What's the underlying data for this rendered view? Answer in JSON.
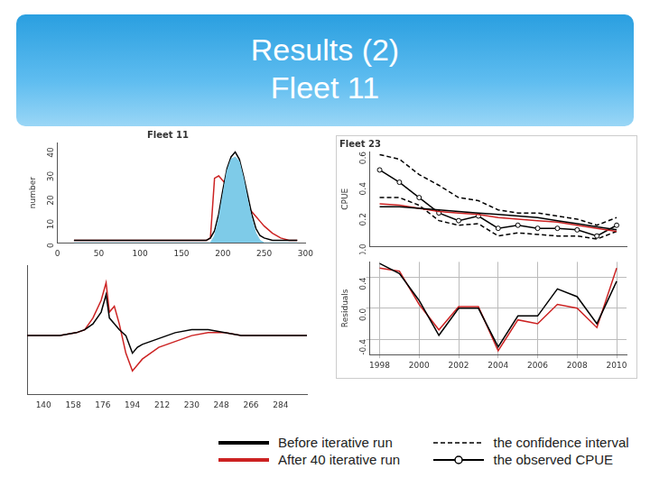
{
  "header": {
    "title": [
      "Results (2)",
      "Fleet 11"
    ]
  },
  "chart_data": [
    {
      "type": "line",
      "title": "Fleet 11",
      "y_label": "number",
      "x": [
        20,
        50,
        100,
        150,
        170,
        180,
        185,
        190,
        195,
        200,
        205,
        210,
        215,
        220,
        225,
        230,
        235,
        240,
        245,
        250,
        260,
        270,
        280,
        290
      ],
      "series": [
        {
          "type": "area",
          "color": "#7ecbe8",
          "values": [
            0,
            0,
            0,
            0,
            0,
            0,
            0,
            3,
            10,
            20,
            30,
            35,
            36,
            34,
            27,
            18,
            10,
            4,
            1,
            0,
            0,
            0,
            0,
            0
          ]
        },
        {
          "name": "Before iterative run",
          "color": "#000000",
          "values": [
            1,
            1,
            1,
            1,
            1,
            1,
            2,
            5,
            12,
            22,
            31,
            36,
            38,
            35,
            28,
            20,
            12,
            6,
            3,
            2,
            1,
            1,
            1,
            1
          ]
        },
        {
          "name": "After 40 iterative run",
          "color": "#cc2222",
          "values": [
            1,
            1,
            1,
            1,
            1,
            1,
            2,
            27,
            28,
            26,
            24,
            23,
            21,
            19,
            17,
            15,
            13,
            11,
            9,
            7,
            4,
            2,
            1,
            1
          ]
        }
      ],
      "xlim": [
        0,
        300
      ],
      "xticks": [
        0,
        50,
        100,
        150,
        200,
        250,
        300
      ],
      "ylim": [
        0,
        42
      ],
      "yticks": [
        0,
        10,
        20,
        30,
        40
      ],
      "grid": false
    },
    {
      "type": "line",
      "tick_labels": "x",
      "x": [
        130,
        140,
        150,
        160,
        165,
        170,
        175,
        178,
        180,
        183,
        186,
        190,
        194,
        197,
        200,
        205,
        210,
        220,
        230,
        240,
        250,
        260,
        270,
        280,
        290,
        300
      ],
      "series": [
        {
          "name": "Before iterative run",
          "color": "#000000",
          "values": [
            0,
            0,
            0,
            0.05,
            0.1,
            0.2,
            0.4,
            0.7,
            0.3,
            0.2,
            0.1,
            0,
            -0.3,
            -0.2,
            -0.15,
            -0.1,
            -0.05,
            0.05,
            0.1,
            0.1,
            0.05,
            0,
            0,
            0,
            0,
            0
          ]
        },
        {
          "name": "After 40 iterative run",
          "color": "#cc2222",
          "values": [
            0,
            0,
            0,
            0.05,
            0.1,
            0.3,
            0.6,
            0.9,
            0.4,
            0.5,
            0.2,
            -0.3,
            -0.6,
            -0.5,
            -0.4,
            -0.3,
            -0.2,
            -0.1,
            0,
            0.05,
            0.05,
            0,
            0,
            0,
            0,
            0
          ]
        }
      ],
      "xlim": [
        130,
        300
      ],
      "xticks": [
        140,
        158,
        176,
        194,
        212,
        230,
        248,
        266,
        284
      ],
      "ylim": [
        -1,
        1.2
      ],
      "grid": false
    },
    {
      "type": "line",
      "title": "Fleet 23",
      "y_label": "CPUE",
      "tick_labels": "y",
      "legend": "bottom",
      "x": [
        1998,
        1999,
        2000,
        2001,
        2002,
        2003,
        2004,
        2005,
        2006,
        2007,
        2008,
        2009,
        2010
      ],
      "series": [
        {
          "name": "Before iterative run",
          "color": "#000000",
          "values": [
            0.24,
            0.24,
            0.23,
            0.22,
            0.21,
            0.2,
            0.19,
            0.18,
            0.17,
            0.15,
            0.13,
            0.11,
            0.09
          ]
        },
        {
          "name": "After 40 iterative run",
          "color": "#cc2222",
          "values": [
            0.26,
            0.25,
            0.23,
            0.21,
            0.2,
            0.19,
            0.17,
            0.16,
            0.15,
            0.14,
            0.12,
            0.1,
            0.08
          ]
        },
        {
          "name": "the confidence interval",
          "color": "#000000",
          "line_style": "dashed",
          "lower": [
            0.3,
            0.3,
            0.25,
            0.15,
            0.12,
            0.13,
            0.05,
            0.07,
            0.06,
            0.05,
            0.05,
            0.03,
            0.08
          ],
          "upper": [
            0.58,
            0.55,
            0.45,
            0.38,
            0.3,
            0.28,
            0.22,
            0.2,
            0.2,
            0.18,
            0.16,
            0.12,
            0.17
          ]
        },
        {
          "name": "the observed CPUE",
          "color": "#000000",
          "marker": "circle",
          "values": [
            0.48,
            0.4,
            0.3,
            0.2,
            0.15,
            0.18,
            0.1,
            0.12,
            0.1,
            0.1,
            0.09,
            0.05,
            0.12
          ]
        }
      ],
      "xlim": [
        1997.5,
        2010.5
      ],
      "xticks": [
        1998,
        2000,
        2002,
        2004,
        2006,
        2008,
        2010
      ],
      "ylim": [
        -0.02,
        0.6
      ],
      "yticks": [
        {
          "value": 0,
          "label": "0.0"
        },
        0.2,
        0.4,
        0.6
      ],
      "grid": false
    },
    {
      "type": "line",
      "y_label": "Residuals",
      "x": [
        1998,
        1999,
        2000,
        2001,
        2002,
        2003,
        2004,
        2005,
        2006,
        2007,
        2008,
        2009,
        2010
      ],
      "series": [
        {
          "name": "Before iterative run",
          "color": "#000000",
          "values": [
            0.58,
            0.45,
            0.1,
            -0.35,
            0.0,
            0.0,
            -0.5,
            -0.1,
            -0.1,
            0.25,
            0.15,
            -0.2,
            0.35
          ]
        },
        {
          "name": "After 40 iterative run",
          "color": "#cc2222",
          "values": [
            0.52,
            0.48,
            0.05,
            -0.28,
            0.02,
            0.02,
            -0.55,
            -0.15,
            -0.2,
            0.05,
            0.0,
            -0.25,
            0.52
          ]
        }
      ],
      "xlim": [
        1997.5,
        2010.5
      ],
      "xticks": [
        1998,
        2000,
        2002,
        2004,
        2006,
        2008,
        2010
      ],
      "ylim": [
        -0.6,
        0.6
      ],
      "yticks": [
        -0.4,
        {
          "value": 0,
          "label": "0.0"
        },
        0.4
      ],
      "grid": true
    }
  ]
}
